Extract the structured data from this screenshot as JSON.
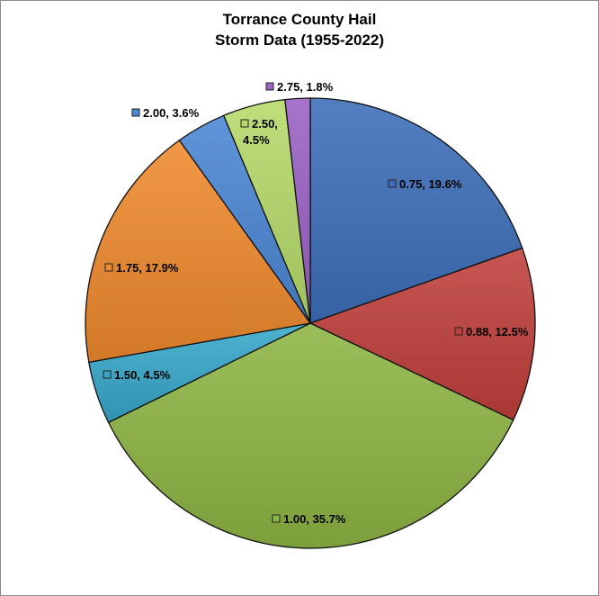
{
  "chart_data": {
    "type": "pie",
    "title": "Torrance County Hail Storm Data (1955-2022)",
    "title_lines": [
      "Torrance County Hail",
      "Storm Data (1955-2022)"
    ],
    "slices": [
      {
        "label": "0.75",
        "percent": 19.6,
        "display": "0.75, 19.6%",
        "color": "#3d6eb8"
      },
      {
        "label": "0.88",
        "percent": 12.5,
        "display": "0.88, 12.5%",
        "color": "#c0403c"
      },
      {
        "label": "1.00",
        "percent": 35.7,
        "display": "1.00, 35.7%",
        "color": "#8db544"
      },
      {
        "label": "1.50",
        "percent": 4.5,
        "display": "1.50, 4.5%",
        "color": "#37a7c9"
      },
      {
        "label": "1.75",
        "percent": 17.9,
        "display": "1.75, 17.9%",
        "color": "#ef8a2e"
      },
      {
        "label": "2.00",
        "percent": 3.6,
        "display": "2.00, 3.6%",
        "color": "#4a86d4"
      },
      {
        "label": "2.50",
        "percent": 4.5,
        "display": "2.50,|4.5%",
        "color": "#b6d96a"
      },
      {
        "label": "2.75",
        "percent": 1.8,
        "display": "2.75, 1.8%",
        "color": "#9a62c4"
      }
    ]
  }
}
